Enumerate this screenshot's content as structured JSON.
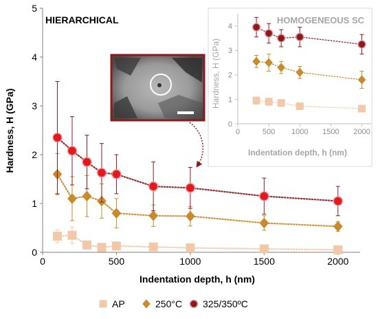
{
  "chart_data": [
    {
      "type": "scatter",
      "panel": "main",
      "title": "HIERARCHICAL",
      "xlabel": "Indentation depth, h (nm)",
      "ylabel": "Hardness, H (GPa)",
      "xlim": [
        0,
        2150
      ],
      "ylim": [
        0,
        5
      ],
      "xticks": [
        0,
        500,
        1000,
        1500,
        2000
      ],
      "yticks": [
        0,
        1,
        2,
        3,
        4,
        5
      ],
      "grid": false,
      "legend_position": "bottom",
      "series": [
        {
          "name": "AP",
          "color": "#f2c9a8",
          "marker": "square",
          "points": [
            {
              "x": 100,
              "y": 0.33,
              "err": 0.13
            },
            {
              "x": 200,
              "y": 0.35,
              "err": 0.17
            },
            {
              "x": 300,
              "y": 0.15,
              "err": 0.07
            },
            {
              "x": 400,
              "y": 0.1,
              "err": 0.05
            },
            {
              "x": 500,
              "y": 0.13,
              "err": 0.05
            },
            {
              "x": 750,
              "y": 0.11,
              "err": 0.04
            },
            {
              "x": 1000,
              "y": 0.09,
              "err": 0.03
            },
            {
              "x": 1500,
              "y": 0.07,
              "err": 0.03
            },
            {
              "x": 2000,
              "y": 0.05,
              "err": 0.03
            }
          ]
        },
        {
          "name": "250°C",
          "color": "#c98a2b",
          "marker": "diamond",
          "points": [
            {
              "x": 100,
              "y": 1.6,
              "err": 0.42
            },
            {
              "x": 200,
              "y": 1.1,
              "err": 0.45
            },
            {
              "x": 300,
              "y": 1.15,
              "err": 0.42
            },
            {
              "x": 400,
              "y": 1.05,
              "err": 0.35
            },
            {
              "x": 500,
              "y": 0.8,
              "err": 0.3
            },
            {
              "x": 750,
              "y": 0.75,
              "err": 0.22
            },
            {
              "x": 1000,
              "y": 0.74,
              "err": 0.2
            },
            {
              "x": 1500,
              "y": 0.6,
              "err": 0.15
            },
            {
              "x": 2000,
              "y": 0.53,
              "err": 0.1
            }
          ]
        },
        {
          "name": "325/350ºC",
          "color": "#8b1a1a",
          "marker": "circle",
          "points": [
            {
              "x": 100,
              "y": 2.35,
              "err": 1.15
            },
            {
              "x": 200,
              "y": 2.08,
              "err": 0.7
            },
            {
              "x": 300,
              "y": 1.85,
              "err": 0.55
            },
            {
              "x": 400,
              "y": 1.63,
              "err": 0.6
            },
            {
              "x": 500,
              "y": 1.6,
              "err": 0.4
            },
            {
              "x": 750,
              "y": 1.35,
              "err": 0.5
            },
            {
              "x": 1000,
              "y": 1.32,
              "err": 0.42
            },
            {
              "x": 1500,
              "y": 1.15,
              "err": 0.37
            },
            {
              "x": 2000,
              "y": 1.05,
              "err": 0.3
            }
          ]
        }
      ]
    },
    {
      "type": "scatter",
      "panel": "inset",
      "title": "HOMOGENEOUS SC",
      "xlabel": "Indentation depth, h (nm)",
      "ylabel": "Hardness, H (GPa)",
      "xlim": [
        0,
        2150
      ],
      "ylim": [
        0,
        4.5
      ],
      "xticks": [
        0,
        500,
        1000,
        1500,
        2000
      ],
      "yticks": [
        0,
        1,
        2,
        3,
        4
      ],
      "grid": false,
      "series": [
        {
          "name": "AP",
          "color": "#f2c9a8",
          "marker": "square",
          "points": [
            {
              "x": 300,
              "y": 0.95,
              "err": 0.15
            },
            {
              "x": 500,
              "y": 0.9,
              "err": 0.15
            },
            {
              "x": 700,
              "y": 0.85,
              "err": 0.1
            },
            {
              "x": 1000,
              "y": 0.72,
              "err": 0.12
            },
            {
              "x": 2000,
              "y": 0.62,
              "err": 0.12
            }
          ]
        },
        {
          "name": "250°C",
          "color": "#c98a2b",
          "marker": "diamond",
          "points": [
            {
              "x": 300,
              "y": 2.55,
              "err": 0.25
            },
            {
              "x": 500,
              "y": 2.5,
              "err": 0.35
            },
            {
              "x": 700,
              "y": 2.3,
              "err": 0.25
            },
            {
              "x": 1000,
              "y": 2.1,
              "err": 0.25
            },
            {
              "x": 2000,
              "y": 1.8,
              "err": 0.35
            }
          ]
        },
        {
          "name": "325/350ºC",
          "color": "#8b1a1a",
          "marker": "circle",
          "points": [
            {
              "x": 300,
              "y": 3.95,
              "err": 0.4
            },
            {
              "x": 500,
              "y": 3.7,
              "err": 0.4
            },
            {
              "x": 700,
              "y": 3.5,
              "err": 0.35
            },
            {
              "x": 1000,
              "y": 3.55,
              "err": 0.4
            },
            {
              "x": 2000,
              "y": 3.25,
              "err": 0.4
            }
          ]
        }
      ]
    }
  ],
  "legend": {
    "items": [
      "AP",
      "250°C",
      "325/350ºC"
    ]
  },
  "micrograph": {
    "description_icon": "micrograph-image",
    "colors": {
      "frame": "#8b1a1a",
      "scale_bar": "#ffffff",
      "circle": "#ffffff",
      "arrow": "#8b1a1a"
    }
  }
}
